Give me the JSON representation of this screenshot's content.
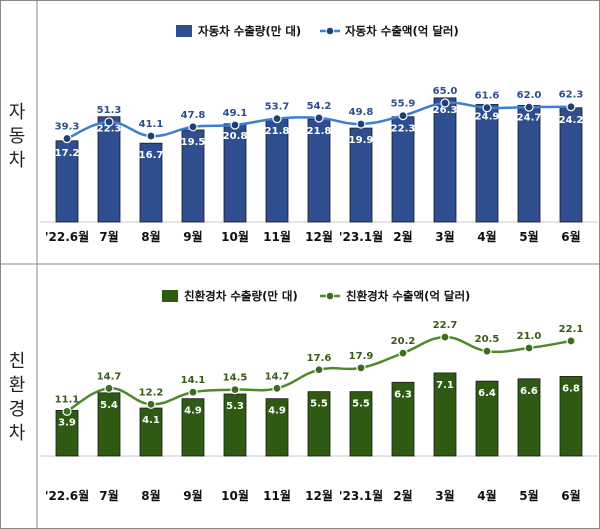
{
  "colors": {
    "car_bar": "#2e4e8f",
    "car_line": "#3a7fd0",
    "car_marker": "#1f3f7a",
    "car_line_label": "#2e4e8f",
    "eco_bar": "#2f5a14",
    "eco_line": "#4e8a2a",
    "eco_marker": "#3a6e1e",
    "eco_line_label": "#3a5a18",
    "bar_label": "#ffffff"
  },
  "chart_data": [
    {
      "type": "bar",
      "side_label": [
        "자",
        "동",
        "차"
      ],
      "categories": [
        "'22.6월",
        "7월",
        "8월",
        "9월",
        "10월",
        "11월",
        "12월",
        "'23.1월",
        "2월",
        "3월",
        "4월",
        "5월",
        "6월"
      ],
      "series": [
        {
          "name": "자동차 수출량(만 대)",
          "type": "bar",
          "values": [
            17.2,
            22.3,
            16.7,
            19.5,
            20.8,
            21.8,
            21.8,
            19.9,
            22.3,
            26.3,
            24.9,
            24.7,
            24.2
          ]
        },
        {
          "name": "자동차 수출액(억 달러)",
          "type": "line",
          "values": [
            39.3,
            51.3,
            41.1,
            47.8,
            49.1,
            53.7,
            54.2,
            49.8,
            55.9,
            65.0,
            61.6,
            62.0,
            62.3
          ]
        }
      ]
    },
    {
      "type": "bar",
      "side_label": [
        "친",
        "환",
        "경",
        "차"
      ],
      "categories": [
        "'22.6월",
        "7월",
        "8월",
        "9월",
        "10월",
        "11월",
        "12월",
        "'23.1월",
        "2월",
        "3월",
        "4월",
        "5월",
        "6월"
      ],
      "series": [
        {
          "name": "친환경차 수출량(만 대)",
          "type": "bar",
          "values": [
            3.9,
            5.4,
            4.1,
            4.9,
            5.3,
            4.9,
            5.5,
            5.5,
            6.3,
            7.1,
            6.4,
            6.6,
            6.8
          ]
        },
        {
          "name": "친환경차 수출액(억 달러)",
          "type": "line",
          "values": [
            11.1,
            14.7,
            12.2,
            14.1,
            14.5,
            14.7,
            17.6,
            17.9,
            20.2,
            22.7,
            20.5,
            21.0,
            22.1
          ]
        }
      ]
    }
  ]
}
